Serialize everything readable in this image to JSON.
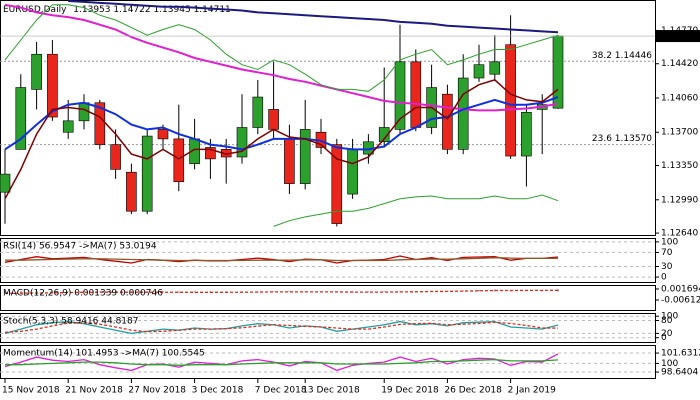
{
  "chart_data": [
    {
      "type": "candlestick",
      "title": "EURUSD,Daily",
      "categories": [
        "15 Nov 2018",
        null,
        null,
        null,
        "21 Nov 2018",
        null,
        null,
        null,
        "27 Nov 2018",
        null,
        null,
        null,
        "3 Dec 2018",
        null,
        null,
        null,
        "7 Dec 2018",
        null,
        null,
        "13 Dec 2018",
        null,
        null,
        null,
        null,
        "19 Dec 2018",
        null,
        null,
        null,
        "26 Dec 2018",
        null,
        null,
        null,
        "2 Jan 2019",
        null,
        null,
        null
      ],
      "open": [
        1.1307,
        1.1352,
        1.1415,
        1.1452,
        1.137,
        1.1382,
        1.1401,
        1.1357,
        1.1328,
        1.1287,
        1.1373,
        1.1363,
        1.1337,
        1.1354,
        1.1352,
        1.1344,
        1.1375,
        1.1394,
        1.1363,
        1.1316,
        1.137,
        1.1357,
        1.1305,
        1.1347,
        1.136,
        1.1373,
        1.1444,
        1.1375,
        1.141,
        1.1352,
        1.1427,
        1.1431,
        1.1462,
        1.1345,
        1.1394,
        1.13953
      ],
      "high": [
        1.1352,
        1.1431,
        1.1465,
        1.1467,
        1.1404,
        1.141,
        1.1404,
        1.1373,
        1.1337,
        1.1373,
        1.1378,
        1.1399,
        1.1384,
        1.1363,
        1.1363,
        1.141,
        1.1425,
        1.1444,
        1.1378,
        1.1404,
        1.1384,
        1.1363,
        1.1363,
        1.1368,
        1.1438,
        1.1483,
        1.1457,
        1.1441,
        1.142,
        1.1452,
        1.1462,
        1.1472,
        1.1493,
        1.1399,
        1.141,
        1.14722
      ],
      "low": [
        1.1274,
        1.1352,
        1.1394,
        1.1382,
        1.1363,
        1.1373,
        1.1352,
        1.1321,
        1.1284,
        1.1284,
        1.1352,
        1.1308,
        1.1331,
        1.1321,
        1.1316,
        1.1337,
        1.1368,
        1.1363,
        1.1305,
        1.131,
        1.1347,
        1.1271,
        1.13,
        1.1337,
        1.1354,
        1.1368,
        1.1371,
        1.1368,
        1.1347,
        1.1347,
        1.1423,
        1.1425,
        1.1342,
        1.1313,
        1.1347,
        1.13945
      ],
      "close": [
        1.1326,
        1.1417,
        1.1452,
        1.1386,
        1.1382,
        1.1401,
        1.1357,
        1.1331,
        1.1287,
        1.1366,
        1.1363,
        1.1318,
        1.1363,
        1.1342,
        1.1344,
        1.1375,
        1.1407,
        1.1373,
        1.1316,
        1.1373,
        1.1354,
        1.1274,
        1.1352,
        1.136,
        1.1375,
        1.1444,
        1.1375,
        1.1417,
        1.1352,
        1.1427,
        1.1441,
        1.1444,
        1.1345,
        1.1391,
        1.1399,
        1.14711
      ],
      "up_color": "#2ca02c",
      "down_color": "#e8261c",
      "series": [
        {
          "color": "#e020d0",
          "width": 2,
          "values": [
            1.1504,
            1.1501,
            1.1496,
            1.1493,
            1.1491,
            1.1488,
            1.1483,
            1.1478,
            1.147,
            1.1464,
            1.1459,
            1.1454,
            1.1448,
            1.1444,
            1.144,
            1.1436,
            1.1433,
            1.143,
            1.1426,
            1.1423,
            1.1419,
            1.1415,
            1.1411,
            1.1407,
            1.1403,
            1.1401,
            1.14,
            1.1398,
            1.1396,
            1.1394,
            1.1393,
            1.1393,
            1.1394,
            1.1395,
            1.1397,
            1.14
          ]
        },
        {
          "color": "#1a1a80",
          "width": 2,
          "values": [
            null,
            null,
            null,
            null,
            1.1508,
            1.1507,
            1.1506,
            1.1505,
            1.1504,
            1.1503,
            1.1502,
            1.1502,
            1.1501,
            1.15,
            1.1499,
            1.1498,
            1.1496,
            1.1495,
            1.1494,
            1.1493,
            1.1492,
            1.1491,
            1.149,
            1.1489,
            1.1488,
            1.1486,
            1.1485,
            1.1484,
            1.1482,
            1.1481,
            1.148,
            1.1479,
            1.1478,
            1.1477,
            1.1476,
            1.1475
          ]
        },
        {
          "color": "#1030e0",
          "width": 2,
          "values": [
            1.1352,
            1.1363,
            1.1378,
            1.1392,
            1.1399,
            1.1401,
            1.1396,
            1.1389,
            1.1378,
            1.1373,
            1.1375,
            1.1368,
            1.1363,
            1.1357,
            1.1355,
            1.1352,
            1.1357,
            1.1363,
            1.1363,
            1.1363,
            1.1361,
            1.1354,
            1.1352,
            1.1352,
            1.1355,
            1.1368,
            1.1375,
            1.1384,
            1.1386,
            1.1394,
            1.1399,
            1.1404,
            1.1399,
            1.1399,
            1.1401,
            1.1407
          ]
        },
        {
          "color": "#800000",
          "width": 1.5,
          "values": [
            1.13,
            1.1331,
            1.1368,
            1.1394,
            1.1396,
            1.1394,
            1.1386,
            1.1368,
            1.1347,
            1.1342,
            1.1352,
            1.1342,
            1.1352,
            1.1352,
            1.1347,
            1.135,
            1.1363,
            1.1373,
            1.1365,
            1.1363,
            1.1357,
            1.1342,
            1.1337,
            1.1344,
            1.1363,
            1.1384,
            1.1396,
            1.1396,
            1.1384,
            1.141,
            1.142,
            1.1425,
            1.141,
            1.1404,
            1.1402,
            1.1415
          ]
        },
        {
          "color": "#2ca02c",
          "width": 1,
          "values": [
            1.1446,
            1.1467,
            1.1488,
            1.1504,
            1.1504,
            1.1501,
            1.1493,
            1.1488,
            1.148,
            1.1472,
            1.1478,
            1.1483,
            1.1478,
            1.1467,
            1.1452,
            1.1441,
            1.1436,
            1.1446,
            1.1441,
            1.1431,
            1.142,
            1.1415,
            1.1415,
            1.1413,
            1.1425,
            1.1446,
            1.1452,
            1.1457,
            1.1441,
            1.1446,
            1.1452,
            1.1457,
            1.1457,
            1.1462,
            1.1467,
            1.1472
          ]
        },
        {
          "color": "#2ca02c",
          "width": 1,
          "values": [
            null,
            null,
            null,
            null,
            null,
            null,
            null,
            null,
            null,
            null,
            null,
            null,
            null,
            null,
            null,
            null,
            null,
            1.1271,
            1.1277,
            1.1281,
            1.1284,
            1.1287,
            1.1287,
            1.129,
            1.1295,
            1.13,
            1.1302,
            1.1303,
            1.13,
            1.13,
            1.13,
            1.1303,
            1.13,
            1.13,
            1.1304,
            1.1298
          ]
        }
      ],
      "levels": [
        {
          "value": 1.14446,
          "label": "38.2 1.14446"
        },
        {
          "value": 1.1357,
          "label": "23.6 1.13570"
        }
      ],
      "ylim": [
        1.1262,
        1.1509
      ],
      "yticks": [
        {
          "value": 1.1477,
          "label": "1.14770"
        },
        {
          "value": 1.1442,
          "label": "1.14420"
        },
        {
          "value": 1.1406,
          "label": "1.14060"
        },
        {
          "value": 1.137,
          "label": "1.13700"
        },
        {
          "value": 1.1335,
          "label": "1.13350"
        },
        {
          "value": 1.1299,
          "label": "1.12990"
        },
        {
          "value": 1.1264,
          "label": "1.12640"
        }
      ]
    },
    {
      "type": "line",
      "title": "RSI(14) 56.9547 ->MA(7) 53.0194",
      "series": [
        {
          "color": "#c00000",
          "values": [
            42,
            50,
            58,
            52,
            54,
            56,
            50,
            45,
            40,
            50,
            48,
            44,
            48,
            46,
            46,
            50,
            54,
            50,
            44,
            51,
            49,
            40,
            47,
            48,
            50,
            60,
            50,
            55,
            47,
            56,
            57,
            58,
            48,
            53,
            53,
            56.9547
          ]
        },
        {
          "color": "#8b5a2b",
          "values": [
            48,
            48,
            49,
            50,
            51,
            52,
            52,
            51,
            50,
            49,
            48,
            47,
            47,
            47,
            47,
            47,
            48,
            48,
            48,
            49,
            49,
            47,
            47,
            47,
            47,
            49,
            50,
            51,
            51,
            52,
            53,
            55,
            54,
            53,
            53,
            53.0194
          ]
        }
      ],
      "ylim": [
        -14,
        111
      ],
      "yticks": [
        0,
        30,
        70,
        100
      ],
      "grid": true
    },
    {
      "type": "line",
      "title": "MACD(12,26,9) 0.001339 0.000746",
      "series": [
        {
          "kind": "bar",
          "color": "#999999",
          "values": [
            -0.0012,
            -0.001,
            -0.0006,
            -0.0004,
            -0.0003,
            -0.0002,
            -0.0003,
            -0.0005,
            -0.0008,
            -0.0007,
            -0.0006,
            -0.0008,
            -0.0007,
            -0.0007,
            -0.0007,
            -0.0005,
            -0.0002,
            -0.0002,
            -0.0005,
            -0.0003,
            -0.0003,
            -0.0007,
            -0.0007,
            -0.0006,
            -0.0004,
            0.0002,
            0.0002,
            0.0004,
            0.0001,
            0.0006,
            0.001,
            0.0013,
            0.0007,
            0.0007,
            0.0007,
            0.001339
          ]
        },
        {
          "kind": "line",
          "dash": true,
          "color": "#e8261c",
          "values": [
            -0.0014,
            -0.0013,
            -0.0012,
            -0.001,
            -0.0009,
            -0.0007,
            -0.0006,
            -0.0006,
            -0.0006,
            -0.0006,
            -0.0006,
            -0.0007,
            -0.0007,
            -0.0007,
            -0.0007,
            -0.0006,
            -0.0005,
            -0.0004,
            -0.0004,
            -0.0004,
            -0.0004,
            -0.0004,
            -0.0005,
            -0.0005,
            -0.0005,
            -0.0004,
            -0.0003,
            -0.0001,
            0,
            0.0002,
            0.0004,
            0.0006,
            0.0006,
            0.0007,
            0.0007,
            0.000746
          ]
        }
      ],
      "ylim": [
        -0.0132,
        0.0045
      ],
      "yticks": [
        0.001694,
        -0.006122
      ],
      "grid": false
    },
    {
      "type": "line",
      "title": "Stoch(5,3,3) 58.9416 44.8187",
      "series": [
        {
          "color": "#20a0a0",
          "values": [
            20,
            40,
            60,
            70,
            75,
            65,
            50,
            35,
            20,
            30,
            40,
            35,
            45,
            40,
            42,
            55,
            65,
            60,
            45,
            55,
            50,
            30,
            40,
            50,
            60,
            75,
            60,
            65,
            55,
            70,
            72,
            75,
            50,
            45,
            40,
            58.9416
          ]
        },
        {
          "color": "#e8261c",
          "dash": true,
          "values": [
            25,
            30,
            40,
            55,
            68,
            70,
            63,
            50,
            35,
            28,
            30,
            35,
            40,
            40,
            42,
            46,
            54,
            60,
            57,
            53,
            50,
            45,
            40,
            40,
            50,
            62,
            65,
            67,
            60,
            63,
            66,
            72,
            66,
            57,
            45,
            44.8187
          ]
        }
      ],
      "ylim": [
        -20,
        115
      ],
      "yticks": [
        0,
        20,
        80,
        100
      ],
      "grid": true
    },
    {
      "type": "line",
      "title": "Momentum(14) 101.4953 ->MA(7) 100.5545",
      "series": [
        {
          "color": "#e020d0",
          "values": [
            99.5,
            100.2,
            101,
            100.5,
            100.3,
            100.6,
            99.8,
            99.3,
            98.9,
            99.8,
            99.9,
            99.4,
            100.2,
            100,
            99.8,
            100.4,
            100.6,
            100.2,
            99.6,
            100.3,
            100.1,
            98.9,
            99.7,
            100,
            100.2,
            101,
            100.3,
            100.8,
            99.9,
            100.6,
            100.8,
            100.7,
            99.7,
            100.3,
            100.2,
            101.4953
          ]
        },
        {
          "color": "#2ca02c",
          "values": [
            99.8,
            99.8,
            99.9,
            100,
            100.1,
            100.2,
            100.2,
            100.1,
            99.9,
            99.8,
            99.8,
            99.7,
            99.8,
            99.8,
            99.8,
            99.9,
            100,
            100.1,
            100.1,
            100.1,
            100.1,
            99.9,
            99.9,
            99.9,
            99.9,
            100,
            100.1,
            100.3,
            100.3,
            100.4,
            100.5,
            100.6,
            100.4,
            100.4,
            100.4,
            100.5545
          ]
        }
      ],
      "ylim": [
        97.7,
        102.9
      ],
      "yticks": [
        98.6404,
        100,
        101.6312
      ],
      "grid": true
    }
  ]
}
